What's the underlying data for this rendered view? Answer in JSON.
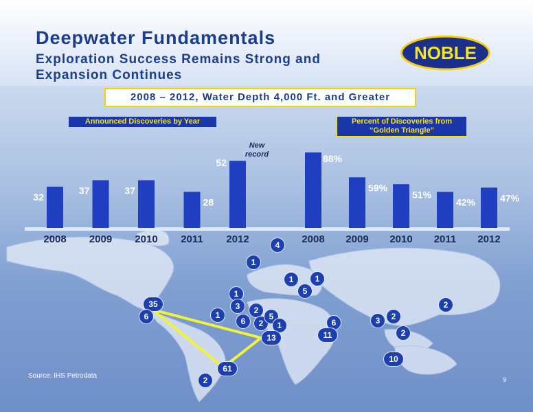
{
  "title": "Deepwater Fundamentals",
  "subtitle": "Exploration Success Remains Strong and Expansion Continues",
  "logo_text": "NOBLE",
  "caption": "2008 – 2012, Water Depth 4,000 Ft. and Greater",
  "annotation": "New record",
  "source": "Source: IHS Petrodata",
  "page_number": "9",
  "chart_data": [
    {
      "type": "bar",
      "title": "Announced Discoveries by Year",
      "categories": [
        "2008",
        "2009",
        "2010",
        "2011",
        "2012"
      ],
      "values": [
        32,
        37,
        37,
        28,
        52
      ],
      "value_labels": [
        "32",
        "37",
        "37",
        "28",
        "52"
      ],
      "ylim": [
        0,
        60
      ],
      "grid": false,
      "bar_color": "#1f3fc0"
    },
    {
      "type": "bar",
      "title": "Percent of Discoveries from “Golden Triangle”",
      "categories": [
        "2008",
        "2009",
        "2010",
        "2011",
        "2012"
      ],
      "values": [
        88,
        59,
        51,
        42,
        47
      ],
      "value_labels": [
        "88%",
        "59%",
        "51%",
        "42%",
        "47%"
      ],
      "ylim": [
        0,
        100
      ],
      "grid": false,
      "bar_color": "#1f3fc0"
    }
  ],
  "map_markers": [
    "4",
    "1",
    "1",
    "1",
    "5",
    "1",
    "35",
    "6",
    "1",
    "3",
    "2",
    "6",
    "2",
    "5",
    "1",
    "6",
    "13",
    "11",
    "3",
    "2",
    "2",
    "2",
    "10",
    "61",
    "2"
  ],
  "colors": {
    "accent": "#1a3d8f",
    "highlight": "#f2e30a",
    "marker": "#1c3fb2",
    "triangle": "#f2f23a"
  }
}
